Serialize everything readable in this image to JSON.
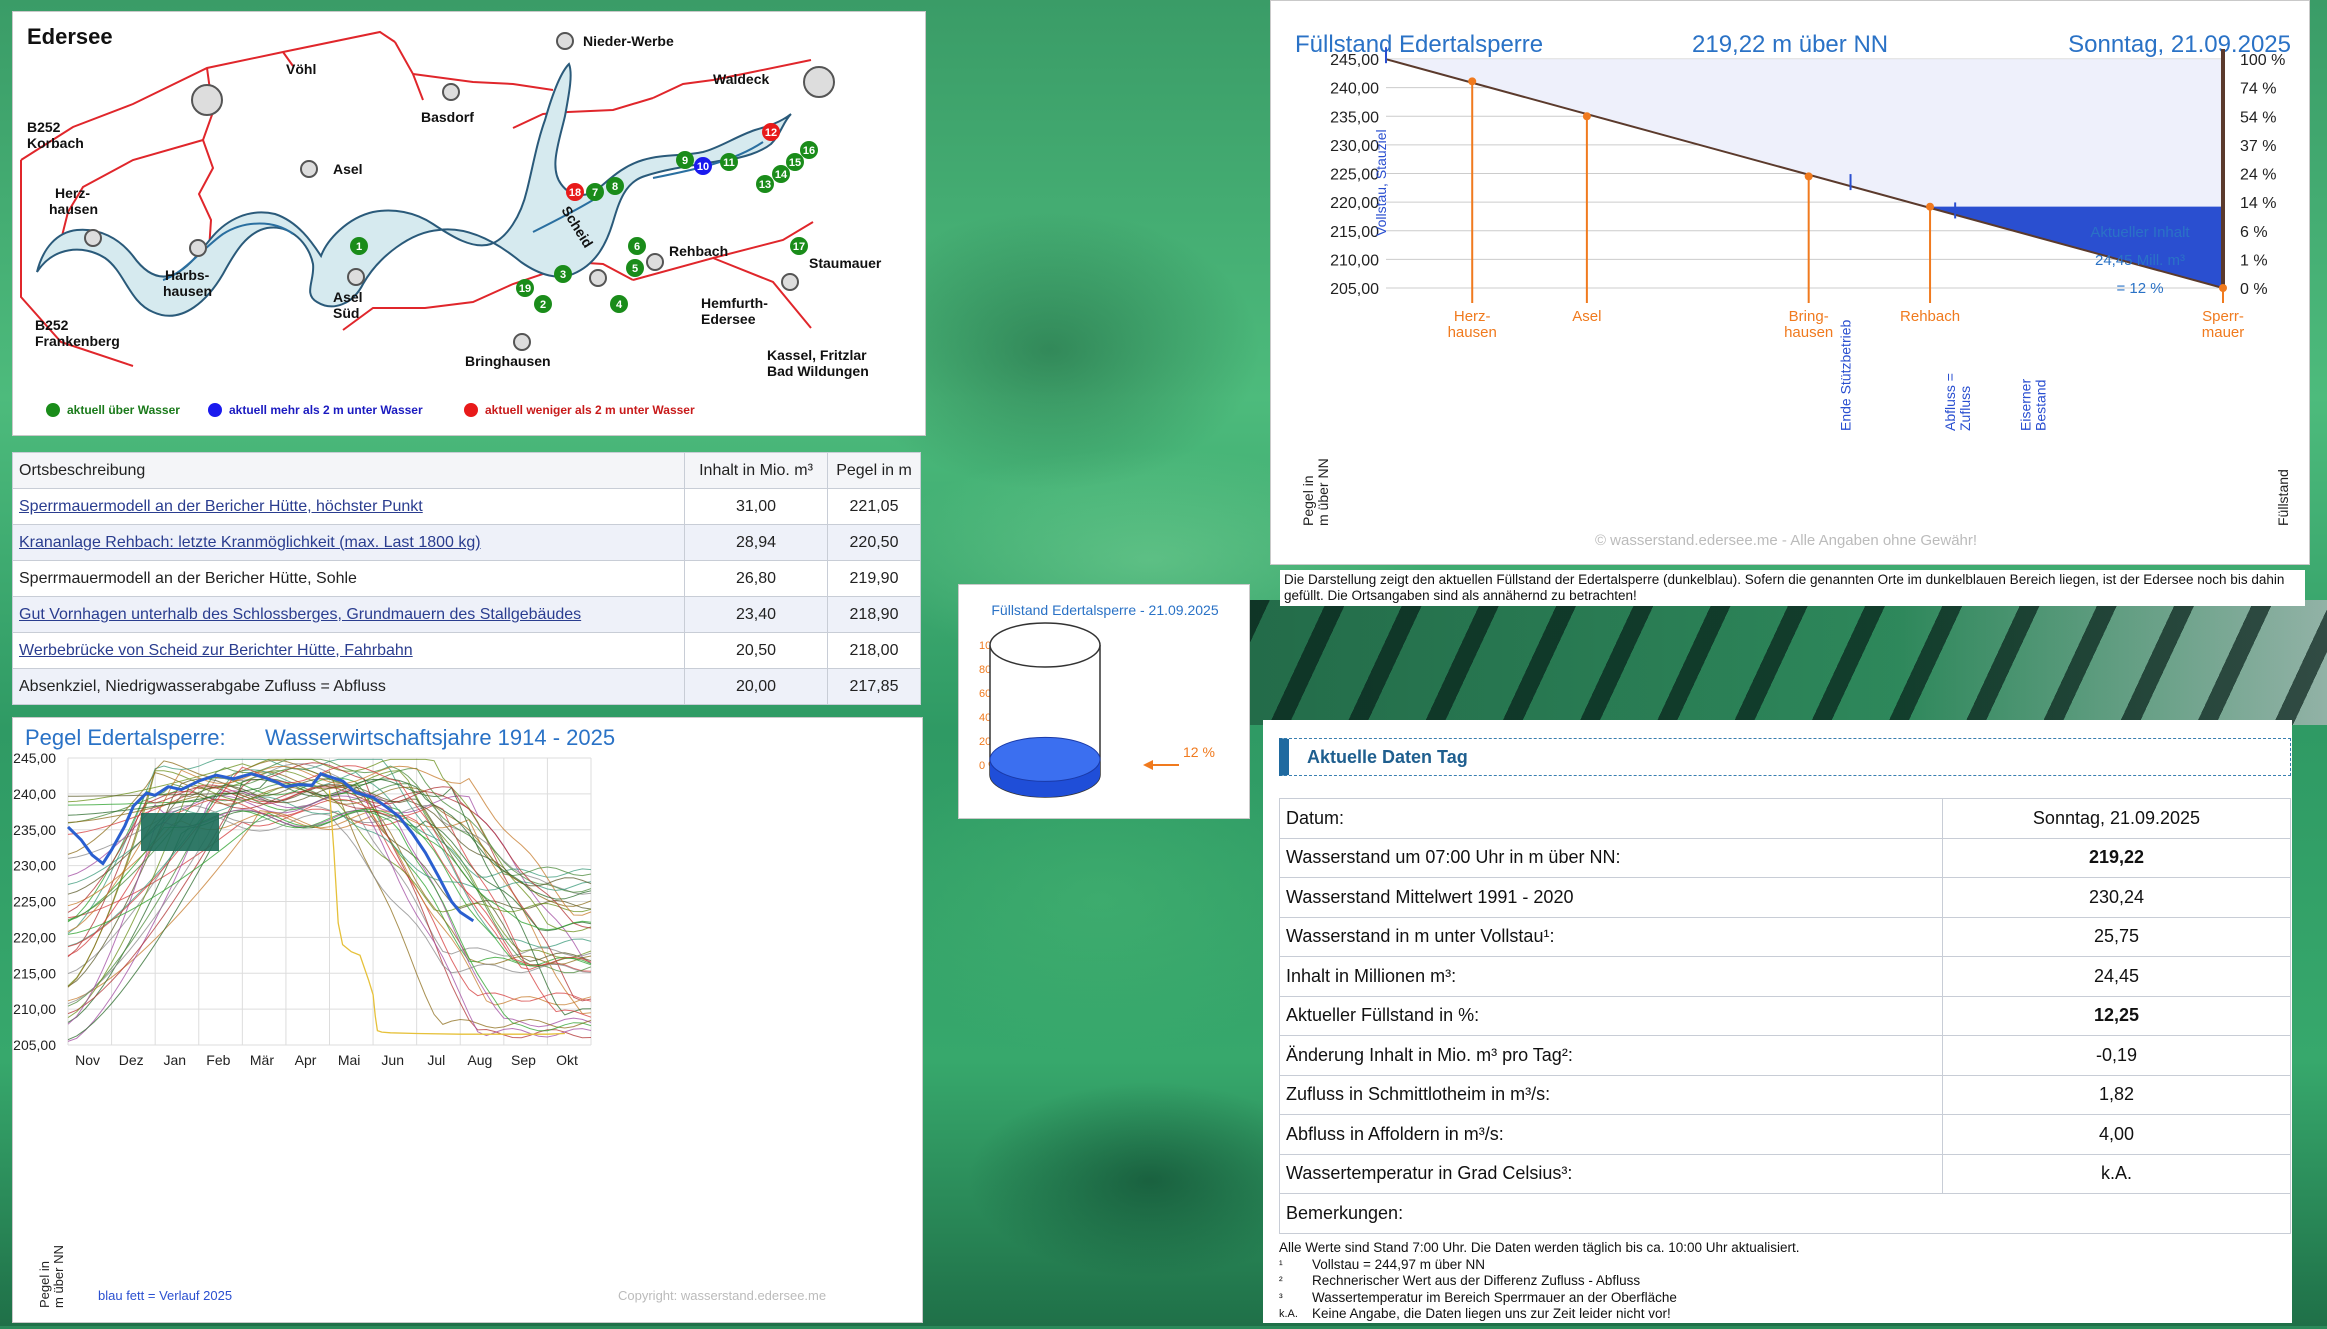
{
  "map": {
    "title": "Edersee",
    "places": [
      "Vöhl",
      "Nieder-Werbe",
      "Waldeck",
      "B252 Korbach",
      "Basdorf",
      "Asel",
      "Herz-hausen",
      "Harbs-hausen",
      "Asel Süd",
      "Scheid",
      "Rehbach",
      "Staumauer",
      "B252 Frankenberg",
      "Bringhausen",
      "Hemfurth-Edersee",
      "Kassel, Fritzlar Bad Wildungen"
    ],
    "markers": {
      "green": [
        "1",
        "2",
        "3",
        "4",
        "5",
        "6",
        "7",
        "8",
        "9",
        "11",
        "13",
        "14",
        "15",
        "16",
        "17",
        "19"
      ],
      "blue": [
        "10"
      ],
      "red": [
        "12",
        "18"
      ]
    },
    "legend": [
      "aktuell über Wasser",
      "aktuell mehr als 2 m unter Wasser",
      "aktuell weniger als 2 m unter Wasser"
    ],
    "colors": {
      "green": "#1a8c1a",
      "blue": "#1a1aee",
      "red": "#e81a1a",
      "water": "#d6eaef",
      "road": "#e0262b"
    }
  },
  "locations": {
    "headers": [
      "Ortsbeschreibung",
      "Inhalt in Mio. m³",
      "Pegel in m"
    ],
    "rows": [
      {
        "name": "Sperrmauermodell an der Bericher Hütte, höchster Punkt",
        "inhalt": "31,00",
        "pegel": "221,05",
        "link": true
      },
      {
        "name": "Krananlage Rehbach: letzte Kranmöglichkeit (max. Last 1800 kg)",
        "inhalt": "28,94",
        "pegel": "220,50",
        "link": true
      },
      {
        "name": "Sperrmauermodell an der Bericher Hütte, Sohle",
        "inhalt": "26,80",
        "pegel": "219,90",
        "link": false
      },
      {
        "name": "Gut Vornhagen unterhalb des Schlossberges, Grundmauern des Stallgebäudes",
        "inhalt": "23,40",
        "pegel": "218,90",
        "link": true
      },
      {
        "name": "Werbebrücke von Scheid zur Berichter Hütte, Fahrbahn",
        "inhalt": "20,50",
        "pegel": "218,00",
        "link": true
      },
      {
        "name": "Absenkziel, Niedrigwasserabgabe Zufluss = Abfluss",
        "inhalt": "20,00",
        "pegel": "217,85",
        "link": false
      }
    ]
  },
  "chart_data": [
    {
      "type": "line",
      "title": "Pegel Edertalsperre:",
      "subtitle": "Wasserwirtschaftsjahre 1914 - 2025",
      "ylabel": "Pegel in m über NN",
      "ylim": [
        205,
        245
      ],
      "yticks": [
        "245,00",
        "240,00",
        "235,00",
        "230,00",
        "225,00",
        "220,00",
        "215,00",
        "210,00",
        "205,00"
      ],
      "categories": [
        "Nov",
        "Dez",
        "Jan",
        "Feb",
        "Mär",
        "Apr",
        "Mai",
        "Jun",
        "Jul",
        "Aug",
        "Sep",
        "Okt"
      ],
      "legend": "blau fett   =   Verlauf 2025",
      "copyright": "Copyright: wasserstand.edersee.me",
      "series": [
        {
          "name": "Verlauf 2025",
          "color": "#2a5fd0",
          "x": [
            0,
            0.3,
            0.55,
            0.8,
            1,
            1.3,
            1.5,
            1.8,
            2,
            2.3,
            2.6,
            3,
            3.4,
            3.8,
            4.2,
            4.5,
            4.8,
            5,
            5.3,
            5.6,
            5.8,
            6,
            6.3,
            6.6,
            7,
            7.3,
            7.6,
            7.9,
            8.2,
            8.5,
            8.8,
            9,
            9.3
          ],
          "values": [
            235.4,
            233.6,
            231.5,
            230.3,
            232.2,
            235.5,
            238.3,
            240.1,
            239.8,
            241.0,
            240.6,
            241.8,
            242.6,
            242.1,
            242.8,
            242.3,
            241.6,
            241.0,
            241.3,
            241.2,
            242.8,
            242.4,
            241.8,
            240.2,
            239.5,
            238.2,
            236.8,
            234.5,
            231.8,
            228.5,
            225.0,
            223.5,
            222.3
          ]
        },
        {
          "name": "Einzeljahr (gelb)",
          "color": "#e6c13a",
          "x": [
            6,
            6.1,
            6.2,
            6.3,
            6.5,
            6.7,
            6.9,
            7,
            7.05,
            7.1,
            7.2,
            7.4,
            8,
            9,
            10,
            11,
            11.4
          ],
          "values": [
            240.5,
            232.0,
            222.0,
            219.0,
            218.0,
            217.5,
            214.0,
            212.0,
            209.0,
            207.0,
            206.8,
            206.7,
            206.6,
            206.5,
            206.5,
            206.5,
            206.6
          ]
        }
      ]
    },
    {
      "type": "line",
      "title": "Füllstand Edertalsperre",
      "subtitle": "219,22 m über NN",
      "date": "Sonntag, 21.09.2025",
      "ylabel": "Pegel in m über NN",
      "y2label": "Füllstand",
      "ylim": [
        205,
        245
      ],
      "yticks": [
        "245,00",
        "240,00",
        "235,00",
        "230,00",
        "225,00",
        "220,00",
        "215,00",
        "210,00",
        "205,00"
      ],
      "y2ticks": [
        "100 %",
        "74 %",
        "54 %",
        "37 %",
        "24 %",
        "14 %",
        "6 %",
        "1 %",
        "0 %"
      ],
      "current_level": 219.22,
      "profile": [
        {
          "x": 0,
          "y": 244.97
        },
        {
          "x": 1,
          "y": 205
        }
      ],
      "places": [
        {
          "name": "Herz-hausen",
          "x": 0.103,
          "y": 241.1
        },
        {
          "name": "Asel",
          "x": 0.24,
          "y": 235.0
        },
        {
          "name": "Bring-hausen",
          "x": 0.505,
          "y": 224.5
        },
        {
          "name": "Rehbach",
          "x": 0.65,
          "y": 219.2
        },
        {
          "name": "Sperr-mauer",
          "x": 1.0,
          "y": 205.0
        }
      ],
      "annotations": [
        {
          "label": "Vollstau, Stauziel",
          "x": 0,
          "y": 244.97
        },
        {
          "label": "Ende Stützbetrieb",
          "x": 0.555,
          "y": 222.8
        },
        {
          "label": "Abfluss = Zufluss",
          "x": 0.68,
          "y": 217.85
        },
        {
          "label": "Eiserner Bestand",
          "x": 0.77,
          "y": 216.0
        }
      ],
      "inhalt_lines": [
        "Aktueller Inhalt",
        "24,45 Mill. m³",
        "= 12 %"
      ],
      "watermark": "© wasserstand.edersee.me   -   Alle Angaben ohne Gewähr!",
      "colors": {
        "water": "#2a4fd0",
        "air": "#eef0fb",
        "line": "#5b3a2c",
        "marker": "#f07a1e",
        "annot": "#2a4fd0"
      }
    },
    {
      "type": "bar",
      "title": "Füllstand Edertalsperre - 21.09.2025",
      "yticks": [
        "100 %",
        "80 %",
        "60 %",
        "40 %",
        "20 %",
        "0 %"
      ],
      "values": [
        12
      ],
      "value_label": "12 %"
    }
  ],
  "fill_note": "Die Darstellung zeigt den aktuellen Füllstand der Edertalsperre (dunkelblau). Sofern die genannten Orte im dunkelblauen Bereich liegen, ist der Edersee noch bis dahin gefüllt. Die Ortsangaben sind als annähernd zu betrachten!",
  "daily": {
    "heading": "Aktuelle Daten Tag",
    "rows": [
      {
        "label": "Datum:",
        "value": "Sonntag, 21.09.2025",
        "bold": false
      },
      {
        "label": "Wasserstand um 07:00 Uhr in m über NN:",
        "value": "219,22",
        "bold": true
      },
      {
        "label": "Wasserstand Mittelwert 1991 - 2020",
        "value": "230,24",
        "bold": false
      },
      {
        "label": "Wasserstand in m unter Vollstau¹:",
        "value": "25,75",
        "bold": false
      },
      {
        "label": "Inhalt in Millionen m³:",
        "value": "24,45",
        "bold": false
      },
      {
        "label": "Aktueller Füllstand in %:",
        "value": "12,25",
        "bold": true
      },
      {
        "label": "Änderung Inhalt in Mio. m³ pro Tag²:",
        "value": "-0,19",
        "bold": false
      },
      {
        "label": "Zufluss in Schmittlotheim in m³/s:",
        "value": "1,82",
        "bold": false
      },
      {
        "label": "Abfluss in Affoldern in m³/s:",
        "value": "4,00",
        "bold": false
      },
      {
        "label": "Wassertemperatur in Grad Celsius³:",
        "value": "k.A.",
        "bold": false
      }
    ],
    "remarks_label": "Bemerkungen:",
    "notes": [
      {
        "k": "",
        "t": "Alle Werte sind Stand 7:00 Uhr. Die Daten werden täglich bis ca. 10:00 Uhr aktualisiert."
      },
      {
        "k": "¹",
        "t": "Vollstau = 244,97 m über NN"
      },
      {
        "k": "²",
        "t": "Rechnerischer Wert aus der Differenz Zufluss - Abfluss"
      },
      {
        "k": "³",
        "t": "Wassertemperatur im Bereich Sperrmauer an der Oberfläche"
      },
      {
        "k": "k.A.",
        "t": "Keine Angabe, die Daten liegen uns zur Zeit leider nicht vor!"
      }
    ]
  }
}
